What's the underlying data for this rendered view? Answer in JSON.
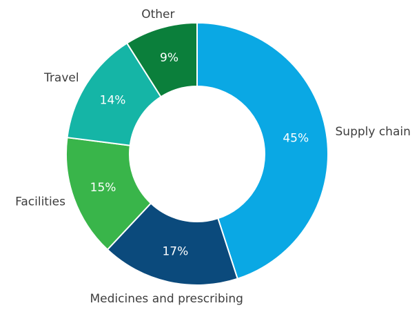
{
  "chart_data": {
    "type": "donut",
    "categories": [
      "Supply chain",
      "Medicines and prescribing",
      "Facilities",
      "Travel",
      "Other"
    ],
    "values": [
      45,
      17,
      15,
      14,
      9
    ],
    "value_labels": [
      "45%",
      "17%",
      "15%",
      "14%",
      "9%"
    ],
    "colors": [
      "#0aa8e4",
      "#0b4a7c",
      "#39b54a",
      "#15b5a6",
      "#0b7f3b"
    ]
  }
}
